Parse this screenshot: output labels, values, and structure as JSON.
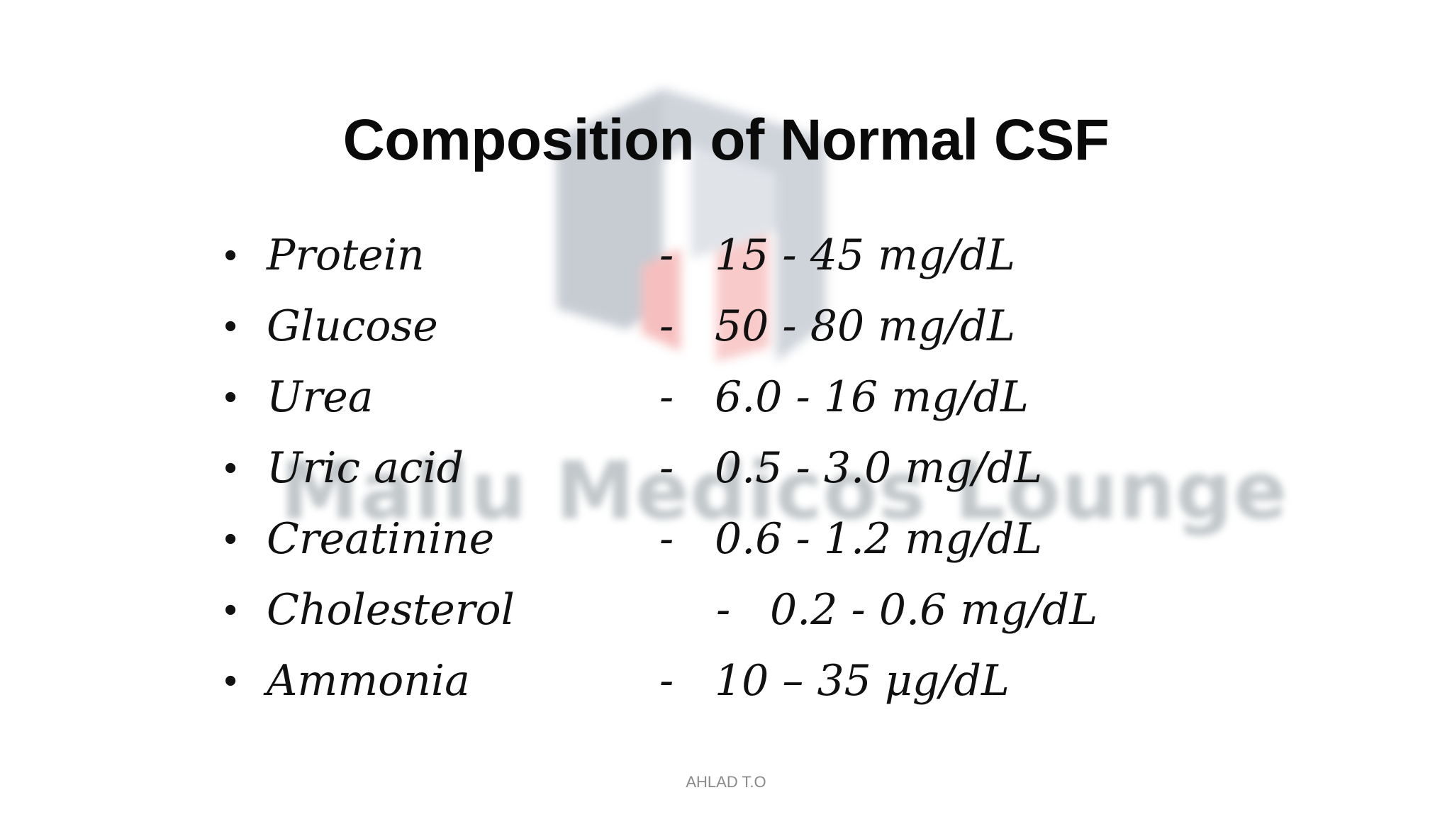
{
  "slide": {
    "title": "Composition of Normal CSF",
    "items": [
      {
        "name": "Protein",
        "dash": "-",
        "value": "15 - 45 mg/dL"
      },
      {
        "name": "Glucose",
        "dash": "-",
        "value": "50 - 80 mg/dL"
      },
      {
        "name": "Urea",
        "dash": "-",
        "value": "6.0 - 16 mg/dL"
      },
      {
        "name": "Uric acid",
        "dash": "-",
        "value": "0.5 - 3.0 mg/dL"
      },
      {
        "name": "Creatinine",
        "dash": "-",
        "value": "0.6 - 1.2 mg/dL"
      },
      {
        "name": "Cholesterol",
        "dash": "-",
        "value": "0.2 - 0.6 mg/dL"
      },
      {
        "name": "Ammonia",
        "dash": "-",
        "value": "10 – 35 μg/dL"
      }
    ],
    "bullet": "•",
    "footer": "AHLAD T.O",
    "watermark": {
      "text": "Mallu Medicos Lounge",
      "logo_icon": "mml-logo-icon",
      "colors": {
        "gray": "#9aa3b0",
        "red": "#f08a8a"
      }
    }
  }
}
